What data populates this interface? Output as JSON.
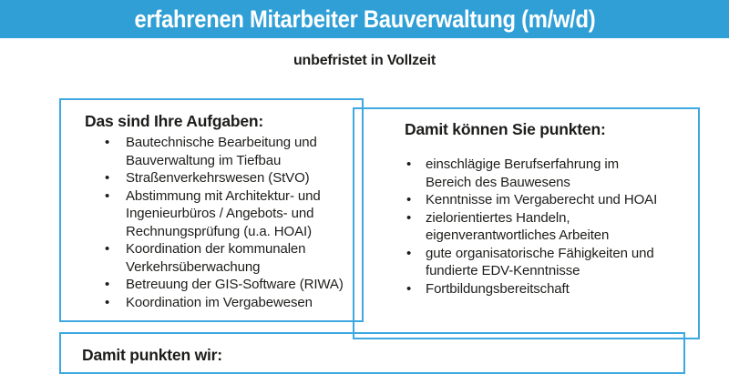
{
  "banner": {
    "title": "erfahrenen Mitarbeiter Bauverwaltung (m/w/d)"
  },
  "subtitle": "unbefristet in Vollzeit",
  "sections": {
    "tasks": {
      "heading": "Das sind Ihre Aufgaben:",
      "items": [
        "Bautechnische Bearbeitung und\nBauverwaltung im Tiefbau",
        "Straßenverkehrswesen (StVO)",
        "Abstimmung mit Architektur- und\nIngenieurbüros / Angebots- und\nRechnungsprüfung (u.a. HOAI)",
        "Koordination der kommunalen\nVerkehrsüberwachung",
        "Betreuung der GIS-Software (RIWA)",
        "Koordination im Vergabewesen"
      ]
    },
    "qualifications": {
      "heading": "Damit können Sie punkten:",
      "items": [
        "einschlägige Berufserfahrung im\nBereich des Bauwesens",
        "Kenntnisse im Vergaberecht und HOAI",
        "zielorientiertes Handeln,\neigenverantwortliches Arbeiten",
        "gute organisatorische Fähigkeiten und\nfundierte EDV-Kenntnisse",
        "Fortbildungsbereitschaft"
      ]
    },
    "benefits": {
      "heading": "Damit punkten wir:"
    }
  },
  "colors": {
    "banner_blue": "#2f9fd6",
    "border_blue": "#3ea8e0",
    "text": "#1d1d1b"
  }
}
